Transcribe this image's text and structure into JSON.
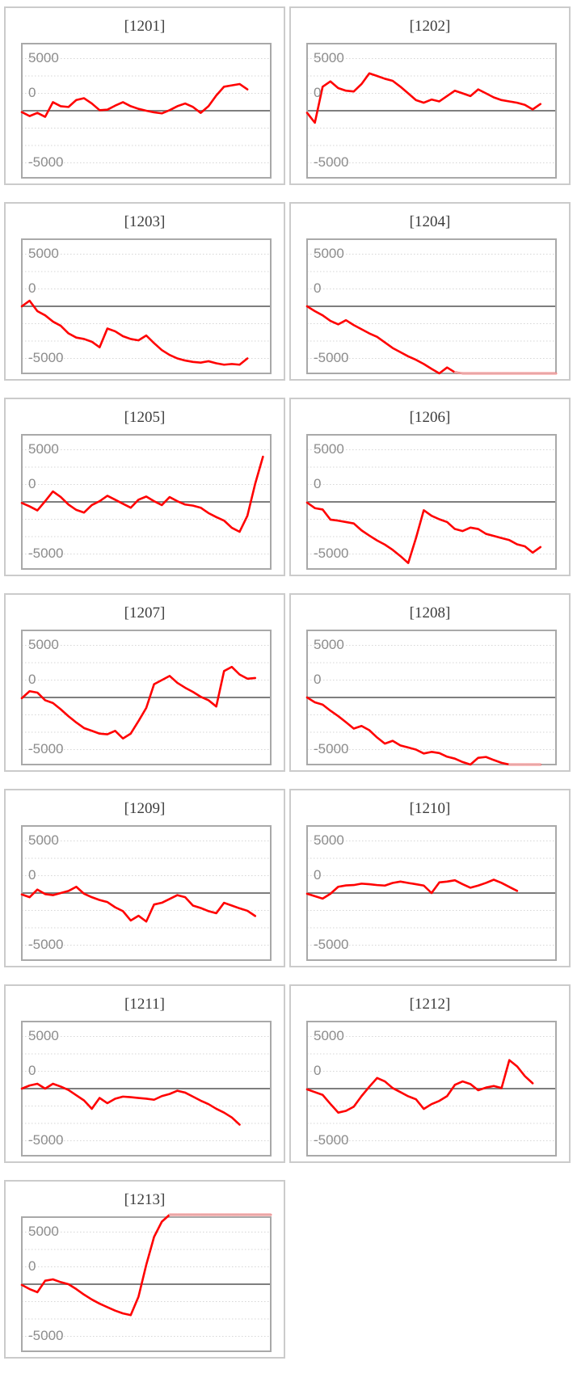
{
  "style": {
    "line_color": "#ff0000",
    "edge_riding_line_color": "#e9a6a6",
    "grid_color": "#d6d6d6",
    "zero_line_color": "#7e7e7e",
    "plot_border_color": "#a9a9a9",
    "card_border_color": "#cbcbcb",
    "axis_label_color": "#8c8c8c",
    "title_color": "#3c3c3c",
    "background": "#ffffff"
  },
  "chart_data": {
    "type": "line",
    "layout": "small-multiples, 2 columns, 13 panels; x axis is an unlabeled sample index; dotted gridlines every 2500; solid gray line at 0",
    "ylim": [
      -9650,
      9650
    ],
    "gridline_step": 2500,
    "ytick_labels": [
      "5000",
      "0",
      "-5000"
    ],
    "series": [
      {
        "machine": "1201",
        "name": "[1201]",
        "values": [
          -200,
          -770,
          -310,
          -880,
          1230,
          650,
          540,
          1540,
          1800,
          1040,
          80,
          150,
          730,
          1230,
          650,
          270,
          0,
          -230,
          -380,
          80,
          650,
          1040,
          540,
          -310,
          650,
          2190,
          3455,
          3650,
          3840,
          3070
        ]
      },
      {
        "machine": "1202",
        "name": "[1202]",
        "values": [
          -300,
          -1730,
          3455,
          4220,
          3260,
          2880,
          2765,
          3840,
          5375,
          5000,
          4600,
          4300,
          3455,
          2500,
          1530,
          1150,
          1610,
          1340,
          2110,
          2880,
          2500,
          2110,
          3070,
          2500,
          1920,
          1530,
          1340,
          1150,
          840,
          190,
          960
        ]
      },
      {
        "machine": "1203",
        "name": "[1203]",
        "values": [
          0,
          800,
          -700,
          -1300,
          -2200,
          -2800,
          -3900,
          -4500,
          -4700,
          -5100,
          -5900,
          -3200,
          -3600,
          -4300,
          -4700,
          -4900,
          -4200,
          -5300,
          -6300,
          -7000,
          -7500,
          -7800,
          -8000,
          -8100,
          -7900,
          -8200,
          -8400,
          -8300,
          -8400,
          -7500
        ]
      },
      {
        "machine": "1204",
        "name": "[1204]",
        "values": [
          0,
          -700,
          -1300,
          -2100,
          -2600,
          -2000,
          -2700,
          -3300,
          -3900,
          -4400,
          -5200,
          -6000,
          -6600,
          -7200,
          -7700,
          -8300,
          -9000,
          -9650,
          -8800,
          -9500,
          -9650,
          -9650,
          -9650,
          -9650,
          -9650,
          -9650,
          -9650,
          -9650,
          -9650,
          -9650,
          -9650,
          -9650,
          -9650
        ]
      },
      {
        "machine": "1205",
        "name": "[1205]",
        "values": [
          -150,
          -650,
          -1230,
          100,
          1500,
          700,
          -380,
          -1150,
          -1540,
          -460,
          100,
          880,
          310,
          -270,
          -840,
          310,
          770,
          100,
          -460,
          690,
          100,
          -380,
          -540,
          -840,
          -1610,
          -2190,
          -2690,
          -3730,
          -4300,
          -2000,
          2600,
          6500
        ]
      },
      {
        "machine": "1206",
        "name": "[1206]",
        "values": [
          -100,
          -900,
          -1100,
          -2550,
          -2700,
          -2900,
          -3100,
          -4100,
          -4850,
          -5550,
          -6150,
          -6900,
          -7800,
          -8800,
          -5200,
          -1200,
          -2000,
          -2500,
          -2900,
          -3900,
          -4200,
          -3700,
          -3900,
          -4600,
          -4900,
          -5200,
          -5500,
          -6100,
          -6400,
          -7300,
          -6500
        ]
      },
      {
        "machine": "1207",
        "name": "[1207]",
        "values": [
          -100,
          900,
          700,
          -400,
          -800,
          -1700,
          -2700,
          -3600,
          -4400,
          -4800,
          -5200,
          -5300,
          -4800,
          -5900,
          -5200,
          -3400,
          -1500,
          1900,
          2500,
          3100,
          2100,
          1400,
          800,
          100,
          -400,
          -1300,
          3800,
          4400,
          3300,
          2700,
          2800
        ]
      },
      {
        "machine": "1208",
        "name": "[1208]",
        "values": [
          0,
          -700,
          -1030,
          -1900,
          -2680,
          -3560,
          -4480,
          -4100,
          -4710,
          -5760,
          -6640,
          -6240,
          -6900,
          -7200,
          -7500,
          -8060,
          -7830,
          -8000,
          -8520,
          -8800,
          -9290,
          -9650,
          -8680,
          -8560,
          -9000,
          -9400,
          -9650,
          -9650,
          -9650,
          -9650,
          -9650
        ]
      },
      {
        "machine": "1209",
        "name": "[1209]",
        "values": [
          -200,
          -600,
          500,
          -150,
          -300,
          0,
          300,
          900,
          -100,
          -600,
          -1000,
          -1300,
          -2050,
          -2600,
          -3950,
          -3265,
          -4100,
          -1650,
          -1400,
          -850,
          -300,
          -600,
          -1800,
          -2150,
          -2600,
          -2900,
          -1400,
          -1800,
          -2200,
          -2550,
          -3300
        ]
      },
      {
        "machine": "1210",
        "name": "[1210]",
        "values": [
          -100,
          -450,
          -800,
          -100,
          900,
          1100,
          1150,
          1350,
          1270,
          1150,
          1075,
          1450,
          1650,
          1450,
          1270,
          1075,
          0,
          1530,
          1650,
          1840,
          1270,
          770,
          1075,
          1460,
          1920,
          1460,
          880,
          310
        ]
      },
      {
        "machine": "1211",
        "name": "[1211]",
        "values": [
          0,
          450,
          700,
          0,
          700,
          300,
          -200,
          -950,
          -1700,
          -2900,
          -1340,
          -2100,
          -1450,
          -1150,
          -1230,
          -1340,
          -1450,
          -1600,
          -1075,
          -770,
          -300,
          -575,
          -1150,
          -1730,
          -2230,
          -2900,
          -3450,
          -4150,
          -5180
        ]
      },
      {
        "machine": "1212",
        "name": "[1212]",
        "values": [
          -100,
          -500,
          -900,
          -2200,
          -3450,
          -3200,
          -2600,
          -1075,
          270,
          1530,
          1040,
          80,
          -500,
          -1100,
          -1530,
          -2920,
          -2230,
          -1760,
          -1075,
          540,
          1040,
          650,
          -230,
          150,
          380,
          80,
          4100,
          3200,
          1800,
          770
        ]
      },
      {
        "machine": "1213",
        "name": "[1213]",
        "values": [
          -100,
          -700,
          -1150,
          500,
          700,
          300,
          0,
          -700,
          -1500,
          -2200,
          -2800,
          -3300,
          -3800,
          -4200,
          -4450,
          -1800,
          2800,
          6800,
          9000,
          10000,
          10000,
          10000,
          10000,
          10000,
          10000,
          10000,
          10000,
          10000,
          10000,
          10000,
          10000,
          10000,
          10000
        ]
      }
    ]
  }
}
